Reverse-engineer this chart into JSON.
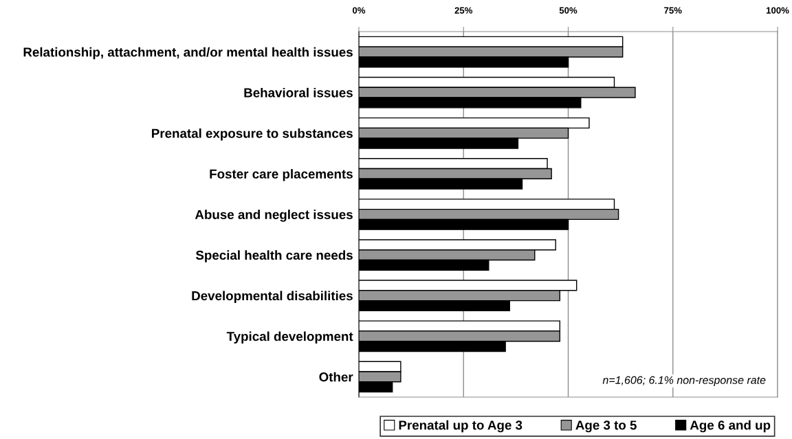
{
  "chart_data": {
    "type": "bar",
    "orientation": "horizontal",
    "categories": [
      "Relationship, attachment, and/or mental health issues",
      "Behavioral issues",
      "Prenatal exposure to substances",
      "Foster care placements",
      "Abuse and neglect issues",
      "Special health care needs",
      "Developmental disabilities",
      "Typical development",
      "Other"
    ],
    "series": [
      {
        "name": "Prenatal up to Age 3",
        "color": "#ffffff",
        "values": [
          63,
          61,
          55,
          45,
          61,
          47,
          52,
          48,
          10
        ]
      },
      {
        "name": "Age 3 to 5",
        "color": "#969696",
        "values": [
          63,
          66,
          50,
          46,
          62,
          42,
          48,
          48,
          10
        ]
      },
      {
        "name": "Age 6 and up",
        "color": "#000000",
        "values": [
          50,
          53,
          38,
          39,
          50,
          31,
          36,
          35,
          8
        ]
      }
    ],
    "xlim": [
      0,
      100
    ],
    "xticks": [
      {
        "value": 0,
        "label": "0%"
      },
      {
        "value": 25,
        "label": "25%"
      },
      {
        "value": 50,
        "label": "50%"
      },
      {
        "value": 75,
        "label": "75%"
      },
      {
        "value": 100,
        "label": "100%"
      }
    ],
    "grid": "x",
    "legend": "bottom",
    "annotations": [
      "n=1,606; 6.1% non-response rate"
    ]
  }
}
